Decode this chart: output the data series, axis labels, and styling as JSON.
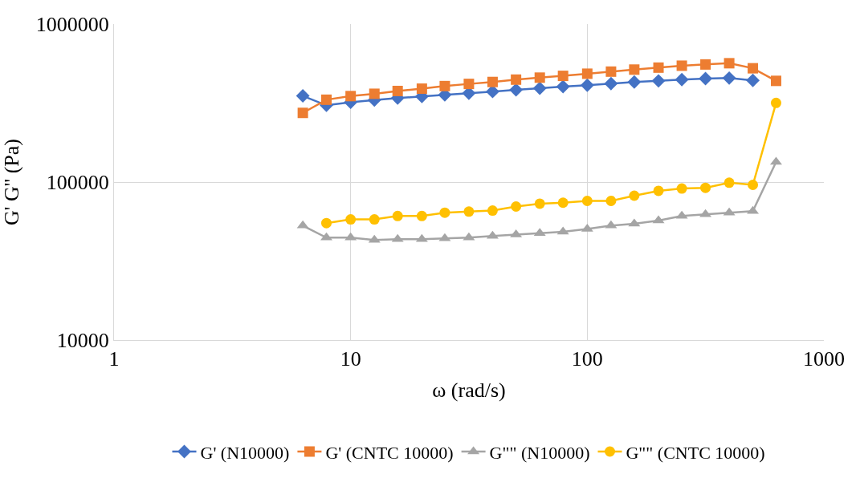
{
  "chart_data": {
    "type": "line",
    "xlabel": "ω (rad/s)",
    "ylabel": "G' G'' (Pa)",
    "x": [
      6.28,
      7.9,
      10,
      12.6,
      15.8,
      20,
      25,
      31.6,
      39.8,
      50,
      63,
      79,
      100,
      126,
      158,
      200,
      251,
      316,
      398,
      501,
      628
    ],
    "series": [
      {
        "name": "G' (N10000)",
        "color": "#4472c4",
        "marker": "diamond",
        "values": [
          351000,
          306000,
          320000,
          330000,
          340000,
          348000,
          356000,
          365000,
          374000,
          383000,
          392000,
          402000,
          410000,
          420000,
          430000,
          437000,
          445000,
          452000,
          455000,
          440000,
          null
        ]
      },
      {
        "name": "G' (CNTC 10000)",
        "color": "#ed7d31",
        "marker": "square",
        "values": [
          274000,
          332000,
          350000,
          362000,
          377000,
          390000,
          405000,
          418000,
          430000,
          445000,
          458000,
          470000,
          485000,
          500000,
          515000,
          530000,
          545000,
          555000,
          565000,
          525000,
          437000
        ]
      },
      {
        "name": "G\"\" (N10000)",
        "color": "#a5a5a5",
        "marker": "triangle",
        "values": [
          53000,
          44500,
          44500,
          43000,
          43500,
          43500,
          44000,
          44500,
          45500,
          46500,
          47500,
          48500,
          50500,
          53000,
          54500,
          57000,
          61000,
          62500,
          64000,
          65500,
          134000
        ]
      },
      {
        "name": "G\"\" (CNTC 10000)",
        "color": "#ffc000",
        "marker": "circle",
        "values": [
          null,
          55000,
          58000,
          58000,
          61000,
          61000,
          64000,
          65000,
          66000,
          70000,
          73000,
          74000,
          76000,
          76000,
          82000,
          88000,
          91000,
          92000,
          99000,
          96000,
          317000
        ]
      }
    ],
    "log": "xy",
    "xlim": [
      1,
      1000
    ],
    "xticks": [
      1,
      10,
      100,
      1000
    ],
    "ylim": [
      10000,
      1000000
    ],
    "yticks": [
      10000,
      100000,
      1000000
    ],
    "grid": true,
    "legend": "bottom",
    "line_style": "solid"
  }
}
